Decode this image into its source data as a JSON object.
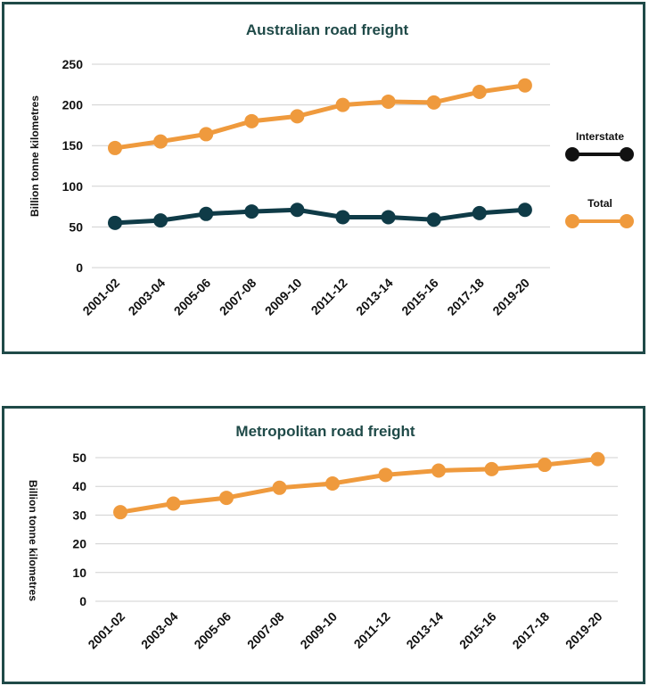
{
  "chart_data": [
    {
      "type": "line",
      "title": "Australian road freight",
      "ylabel": "Billion tonne kilometres",
      "xlabel": "",
      "ylim": [
        0,
        250
      ],
      "yticks": [
        "0",
        "50",
        "100",
        "150",
        "200",
        "250"
      ],
      "categories": [
        "2001-02",
        "2003-04",
        "2005-06",
        "2007-08",
        "2009-10",
        "2011-12",
        "2013-14",
        "2015-16",
        "2017-18",
        "2019-20"
      ],
      "grid": true,
      "legend_position": "right",
      "series": [
        {
          "name": "Interstate",
          "color": "#0f3b47",
          "values": [
            55,
            58,
            66,
            69,
            71,
            62,
            62,
            59,
            67,
            71
          ]
        },
        {
          "name": "Total",
          "color": "#ef9a3d",
          "values": [
            147,
            155,
            164,
            180,
            186,
            200,
            204,
            203,
            216,
            224
          ]
        }
      ]
    },
    {
      "type": "line",
      "title": "Metropolitan road freight",
      "ylabel": "Billion tonne kilometres",
      "xlabel": "",
      "ylim": [
        0,
        50
      ],
      "yticks": [
        "0",
        "10",
        "20",
        "30",
        "40",
        "50"
      ],
      "categories": [
        "2001-02",
        "2003-04",
        "2005-06",
        "2007-08",
        "2009-10",
        "2011-12",
        "2013-14",
        "2015-16",
        "2017-18",
        "2019-20"
      ],
      "grid": true,
      "series": [
        {
          "color": "#ef9a3d",
          "values": [
            31,
            34,
            36,
            39.5,
            41,
            44,
            45.5,
            46,
            47.5,
            49.5
          ]
        }
      ]
    }
  ]
}
